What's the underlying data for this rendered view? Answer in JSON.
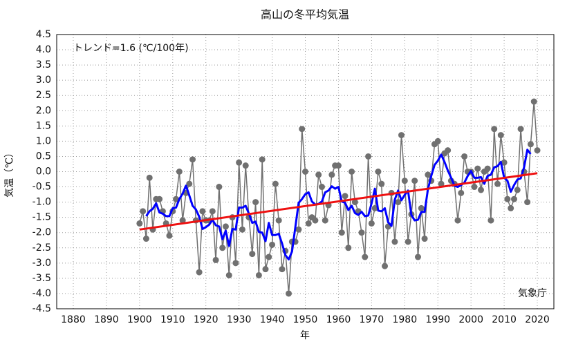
{
  "chart_data": {
    "type": "line",
    "title": "高山の冬平均気温",
    "xlabel": "年",
    "ylabel": "気温（℃）",
    "annotations": [
      "トレンド=1.6 (℃/100年)",
      "気象庁"
    ],
    "xlim": [
      1875,
      2025
    ],
    "xticks": [
      1880,
      1890,
      1900,
      1910,
      1920,
      1930,
      1940,
      1950,
      1960,
      1970,
      1980,
      1990,
      2000,
      2010,
      2020
    ],
    "ylim": [
      -4.5,
      4.5
    ],
    "yticks": [
      4.5,
      {
        "value": 4,
        "label": "4.0"
      },
      3.5,
      {
        "value": 3,
        "label": "3.0"
      },
      2.5,
      {
        "value": 2,
        "label": "2.0"
      },
      1.5,
      {
        "value": 1,
        "label": "1.0"
      },
      0.5,
      {
        "value": 0,
        "label": "0.0"
      },
      -0.5,
      {
        "value": -1,
        "label": "-1.0"
      },
      -1.5,
      {
        "value": -2,
        "label": "-2.0"
      },
      -2.5,
      {
        "value": -3,
        "label": "-3.0"
      },
      -3.5,
      {
        "value": -4,
        "label": "-4.0"
      },
      -4.5
    ],
    "grid": true,
    "x": [
      1900,
      1901,
      1902,
      1903,
      1904,
      1905,
      1906,
      1907,
      1908,
      1909,
      1910,
      1911,
      1912,
      1913,
      1914,
      1915,
      1916,
      1917,
      1918,
      1919,
      1920,
      1921,
      1922,
      1923,
      1924,
      1925,
      1926,
      1927,
      1928,
      1929,
      1930,
      1931,
      1932,
      1933,
      1934,
      1935,
      1936,
      1937,
      1938,
      1939,
      1940,
      1941,
      1942,
      1943,
      1944,
      1945,
      1946,
      1947,
      1948,
      1949,
      1950,
      1951,
      1952,
      1953,
      1954,
      1955,
      1956,
      1957,
      1958,
      1959,
      1960,
      1961,
      1962,
      1963,
      1964,
      1965,
      1966,
      1967,
      1968,
      1969,
      1970,
      1971,
      1972,
      1973,
      1974,
      1975,
      1976,
      1977,
      1978,
      1979,
      1980,
      1981,
      1982,
      1983,
      1984,
      1985,
      1986,
      1987,
      1988,
      1989,
      1990,
      1991,
      1992,
      1993,
      1994,
      1995,
      1996,
      1997,
      1998,
      1999,
      2000,
      2001,
      2002,
      2003,
      2004,
      2005,
      2006,
      2007,
      2008,
      2009,
      2010,
      2011,
      2012,
      2013,
      2014,
      2015,
      2016,
      2017,
      2018,
      2019,
      2020
    ],
    "series": [
      {
        "color": "#707070",
        "markers": true,
        "values": [
          -1.7,
          -1.3,
          -2.2,
          -0.2,
          -1.9,
          -0.9,
          -0.9,
          -1.3,
          -1.7,
          -2.1,
          -1.3,
          -0.9,
          0.0,
          -1.6,
          -0.7,
          -0.4,
          0.4,
          -1.6,
          -3.3,
          -1.3,
          -1.6,
          -1.6,
          -1.3,
          -2.9,
          -0.5,
          -2.5,
          -1.8,
          -3.4,
          -1.5,
          -3.0,
          0.3,
          -1.9,
          0.2,
          -1.5,
          -2.7,
          -1.0,
          -3.4,
          0.4,
          -3.2,
          -2.8,
          -2.4,
          -0.4,
          -1.6,
          -3.2,
          -2.6,
          -4.0,
          -2.3,
          -2.3,
          -1.9,
          1.4,
          0.0,
          -1.7,
          -1.5,
          -1.6,
          -0.1,
          -0.5,
          -1.6,
          -1.1,
          -0.1,
          0.2,
          0.2,
          -2.0,
          -0.8,
          -2.5,
          0.0,
          -1.0,
          -1.3,
          -2.0,
          -2.8,
          0.5,
          -1.7,
          -1.2,
          0.0,
          -0.4,
          -3.1,
          -1.8,
          -0.7,
          -2.3,
          -1.0,
          1.2,
          -0.3,
          -2.3,
          -1.4,
          -0.3,
          -2.8,
          -1.2,
          -2.2,
          -0.1,
          -0.3,
          0.9,
          1.0,
          -0.4,
          0.6,
          0.7,
          -0.3,
          -0.4,
          -1.6,
          -0.7,
          0.5,
          0.0,
          0.0,
          -0.5,
          0.1,
          -0.6,
          0.0,
          0.1,
          -1.6,
          1.4,
          -0.4,
          1.2,
          0.3,
          -0.9,
          -1.2,
          -0.9,
          -0.6,
          1.4,
          0.0,
          -1.0,
          0.9,
          2.3,
          0.7
        ]
      },
      {
        "color": "#0000ff",
        "markers": false,
        "values": [
          null,
          null,
          -1.46,
          -1.3,
          -1.22,
          -1.04,
          -1.34,
          -1.38,
          -1.46,
          -1.46,
          -1.2,
          -1.18,
          -0.9,
          -0.72,
          -0.46,
          -0.78,
          -1.12,
          -1.24,
          -1.48,
          -1.88,
          -1.82,
          -1.74,
          -1.58,
          -1.76,
          -1.8,
          -2.22,
          -1.94,
          -2.44,
          -1.88,
          -1.9,
          -1.18,
          -1.18,
          -1.12,
          -1.38,
          -1.68,
          -1.64,
          -1.98,
          -2.0,
          -2.28,
          -1.68,
          -2.08,
          -2.08,
          -2.04,
          -2.36,
          -2.74,
          -2.88,
          -2.62,
          -1.82,
          -1.02,
          -0.9,
          -0.74,
          -0.68,
          -0.98,
          -1.08,
          -1.06,
          -0.98,
          -0.68,
          -0.62,
          -0.48,
          -0.56,
          -0.5,
          -0.98,
          -1.02,
          -1.26,
          -1.12,
          -1.36,
          -1.42,
          -1.32,
          -1.46,
          -1.44,
          -1.04,
          -0.56,
          -1.28,
          -1.3,
          -1.2,
          -1.66,
          -1.78,
          -0.92,
          -0.62,
          -0.94,
          -0.76,
          -0.62,
          -1.42,
          -1.6,
          -1.58,
          -1.32,
          -1.32,
          -0.58,
          -0.14,
          0.22,
          0.36,
          0.56,
          0.32,
          0.04,
          -0.2,
          -0.46,
          -0.5,
          -0.44,
          -0.36,
          -0.14,
          0.02,
          -0.2,
          -0.2,
          -0.18,
          -0.4,
          -0.14,
          -0.1,
          0.14,
          0.18,
          0.32,
          -0.2,
          -0.3,
          -0.66,
          -0.44,
          -0.26,
          -0.22,
          0.14,
          0.72,
          0.58,
          null,
          null
        ]
      }
    ],
    "trend": {
      "color": "#ee1111",
      "x": [
        1900,
        2020
      ],
      "values": [
        -1.9,
        -0.05
      ]
    }
  }
}
